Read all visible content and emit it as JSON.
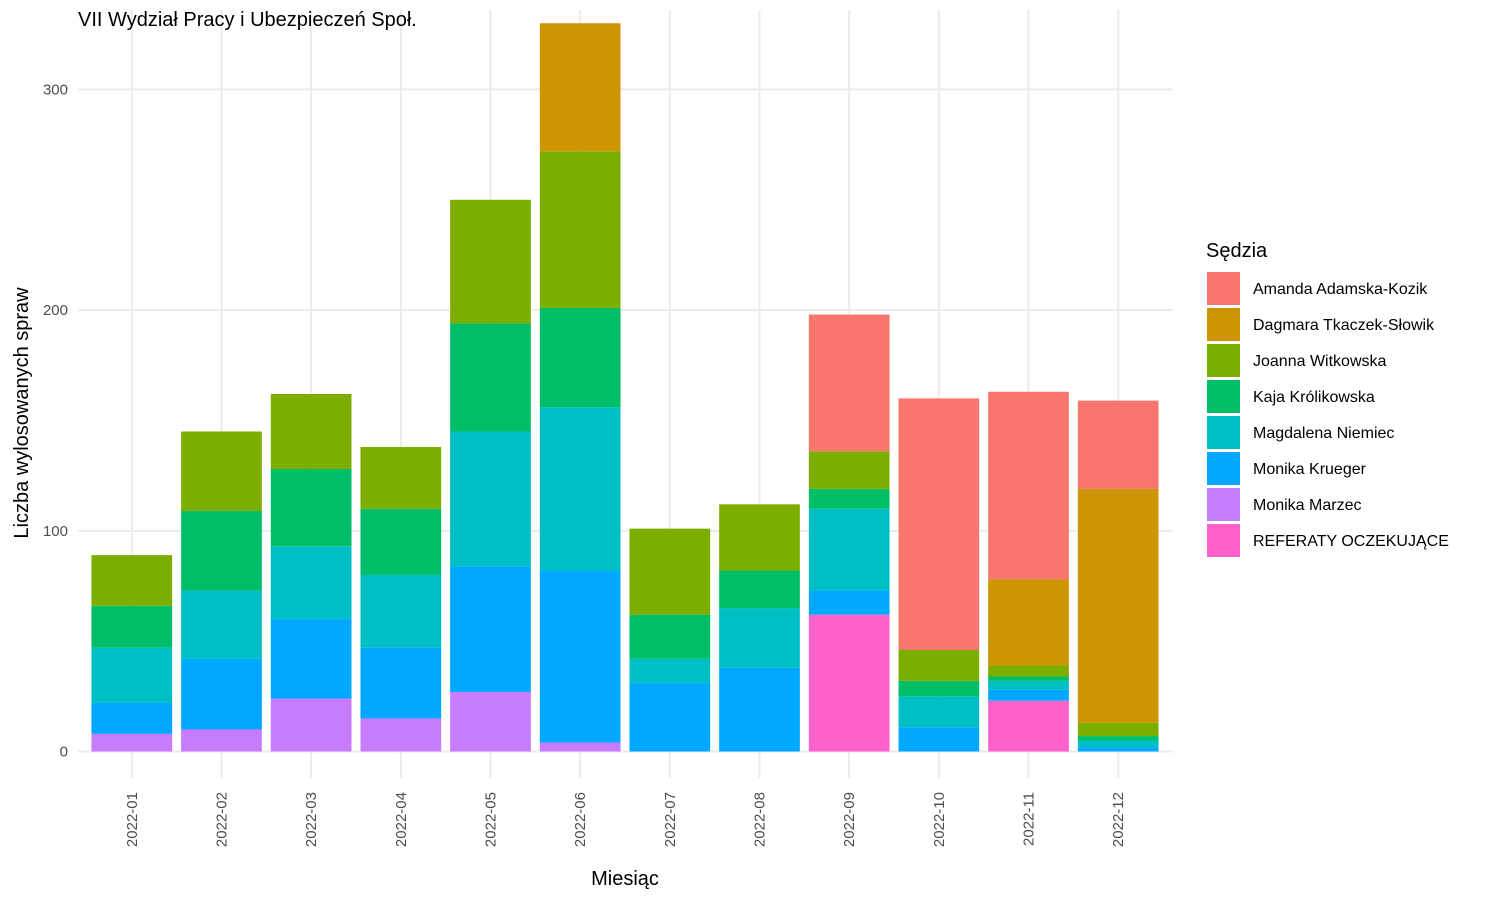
{
  "chart_data": {
    "type": "bar",
    "stacked": true,
    "title": "VII Wydział Pracy i Ubezpieczeń Społ.",
    "xlabel": "Miesiąc",
    "ylabel": "Liczba wylosowanych spraw",
    "ylim": [
      -12,
      336
    ],
    "yticks": [
      0,
      100,
      200,
      300
    ],
    "grid": true,
    "legend_position": "right",
    "legend_title": "Sędzia",
    "categories": [
      "2022-01",
      "2022-02",
      "2022-03",
      "2022-04",
      "2022-05",
      "2022-06",
      "2022-07",
      "2022-08",
      "2022-09",
      "2022-10",
      "2022-11",
      "2022-12"
    ],
    "series": [
      {
        "name": "REFERATY OCZEKUJĄCE",
        "color": "#FF61CC",
        "values": [
          0,
          0,
          0,
          0,
          0,
          0,
          0,
          0,
          62,
          0,
          23,
          0
        ]
      },
      {
        "name": "Monika Marzec",
        "color": "#C77CFF",
        "values": [
          8,
          10,
          24,
          15,
          27,
          4,
          0,
          0,
          0,
          0,
          0,
          0
        ]
      },
      {
        "name": "Monika Krueger",
        "color": "#00A9FF",
        "values": [
          14,
          32,
          36,
          32,
          57,
          78,
          31,
          38,
          11,
          11,
          5,
          2
        ]
      },
      {
        "name": "Magdalena Niemiec",
        "color": "#00BFC4",
        "values": [
          25,
          31,
          33,
          33,
          61,
          74,
          11,
          27,
          37,
          14,
          4,
          3
        ]
      },
      {
        "name": "Kaja Królikowska",
        "color": "#00BE67",
        "values": [
          19,
          36,
          35,
          30,
          49,
          45,
          20,
          17,
          9,
          7,
          2,
          2
        ]
      },
      {
        "name": "Joanna Witkowska",
        "color": "#7CAE00",
        "values": [
          23,
          36,
          34,
          28,
          56,
          71,
          39,
          30,
          17,
          14,
          5,
          6
        ]
      },
      {
        "name": "Dagmara Tkaczek-Słowik",
        "color": "#CD9600",
        "values": [
          0,
          0,
          0,
          0,
          0,
          58,
          0,
          0,
          0,
          0,
          39,
          106
        ]
      },
      {
        "name": "Amanda Adamska-Kozik",
        "color": "#F8766D",
        "values": [
          0,
          0,
          0,
          0,
          0,
          0,
          0,
          0,
          62,
          114,
          85,
          40
        ]
      }
    ],
    "legend_order": [
      "Amanda Adamska-Kozik",
      "Dagmara Tkaczek-Słowik",
      "Joanna Witkowska",
      "Kaja Królikowska",
      "Magdalena Niemiec",
      "Monika Krueger",
      "Monika Marzec",
      "REFERATY OCZEKUJĄCE"
    ]
  }
}
